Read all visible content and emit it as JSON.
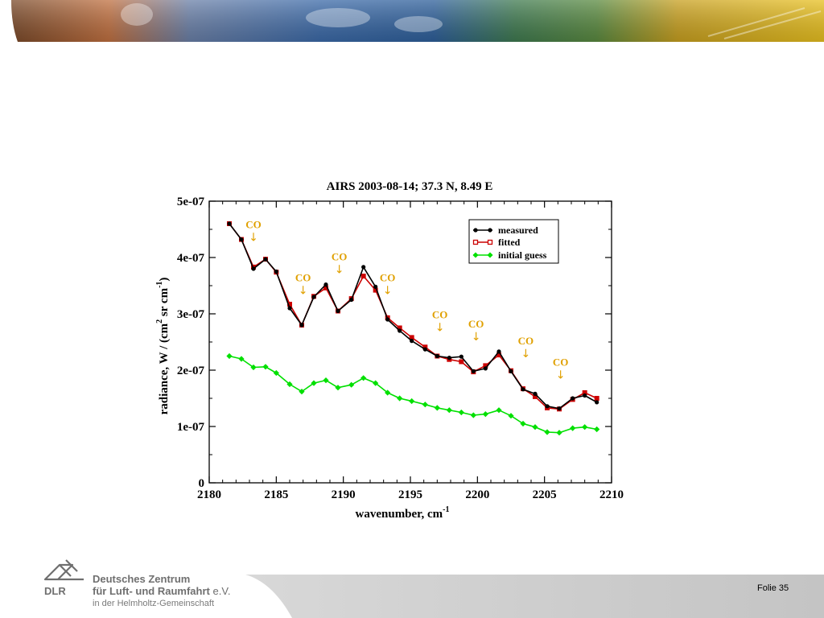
{
  "footer": {
    "org_line1": "Deutsches Zentrum",
    "org_line2": "für Luft- und Raumfahrt",
    "org_suffix": "e.V.",
    "org_line3": "in der Helmholtz-Gemeinschaft",
    "logo_text": "DLR",
    "slide_label": "Folie 35"
  },
  "colors": {
    "measured": "#000000",
    "fitted": "#cc0000",
    "initial_guess": "#00e000",
    "co_annotation": "#e0a000"
  },
  "chart_data": {
    "type": "line",
    "title": "AIRS 2003-08-14; 37.3 N, 8.49 E",
    "xlabel": "wavenumber, cm",
    "xlabel_sup": "-1",
    "ylabel": "radiance, W / (cm",
    "ylabel_sup1": "2",
    "ylabel_mid": " sr cm",
    "ylabel_sup2": "-1",
    "ylabel_end": ")",
    "xlim": [
      2180,
      2210
    ],
    "ylim": [
      0,
      5e-07
    ],
    "xticks": [
      2180,
      2185,
      2190,
      2195,
      2200,
      2205,
      2210
    ],
    "xtick_labels": [
      "2180",
      "2185",
      "2190",
      "2195",
      "2200",
      "2205",
      "2210"
    ],
    "yticks": [
      0,
      1e-07,
      2e-07,
      3e-07,
      4e-07,
      5e-07
    ],
    "ytick_labels": [
      "0",
      "1e-07",
      "2e-07",
      "3e-07",
      "4e-07",
      "5e-07"
    ],
    "legend_position": "top-right",
    "grid": false,
    "x": [
      2181.5,
      2182.4,
      2183.3,
      2184.2,
      2185.0,
      2186.0,
      2186.9,
      2187.8,
      2188.7,
      2189.6,
      2190.6,
      2191.5,
      2192.4,
      2193.3,
      2194.2,
      2195.1,
      2196.1,
      2197.0,
      2197.9,
      2198.8,
      2199.7,
      2200.6,
      2201.6,
      2202.5,
      2203.4,
      2204.3,
      2205.2,
      2206.1,
      2207.1,
      2208.0,
      2208.9
    ],
    "series": [
      {
        "name": "measured",
        "marker": "circle",
        "values": [
          4.6e-07,
          4.32e-07,
          3.8e-07,
          3.97e-07,
          3.75e-07,
          3.1e-07,
          2.8e-07,
          3.3e-07,
          3.52e-07,
          3.05e-07,
          3.25e-07,
          3.83e-07,
          3.48e-07,
          2.9e-07,
          2.7e-07,
          2.52e-07,
          2.37e-07,
          2.25e-07,
          2.22e-07,
          2.24e-07,
          1.98e-07,
          2.03e-07,
          2.33e-07,
          1.98e-07,
          1.66e-07,
          1.58e-07,
          1.36e-07,
          1.32e-07,
          1.5e-07,
          1.55e-07,
          1.43e-07
        ]
      },
      {
        "name": "fitted",
        "marker": "square",
        "values": [
          4.6e-07,
          4.32e-07,
          3.83e-07,
          3.97e-07,
          3.74e-07,
          3.17e-07,
          2.8e-07,
          3.31e-07,
          3.46e-07,
          3.05e-07,
          3.27e-07,
          3.67e-07,
          3.42e-07,
          2.93e-07,
          2.75e-07,
          2.58e-07,
          2.41e-07,
          2.25e-07,
          2.19e-07,
          2.15e-07,
          1.97e-07,
          2.08e-07,
          2.27e-07,
          1.99e-07,
          1.67e-07,
          1.53e-07,
          1.33e-07,
          1.31e-07,
          1.48e-07,
          1.6e-07,
          1.5e-07
        ]
      },
      {
        "name": "initial guess",
        "marker": "diamond",
        "values": [
          2.25e-07,
          2.2e-07,
          2.05e-07,
          2.06e-07,
          1.95e-07,
          1.75e-07,
          1.62e-07,
          1.77e-07,
          1.82e-07,
          1.69e-07,
          1.74e-07,
          1.86e-07,
          1.77e-07,
          1.6e-07,
          1.5e-07,
          1.45e-07,
          1.39e-07,
          1.33e-07,
          1.29e-07,
          1.25e-07,
          1.2e-07,
          1.22e-07,
          1.29e-07,
          1.19e-07,
          1.05e-07,
          9.9e-08,
          9e-08,
          8.9e-08,
          9.7e-08,
          9.9e-08,
          9.5e-08
        ]
      }
    ],
    "annotations": [
      {
        "text": "CO",
        "arrow": "↓",
        "x": 2183.3,
        "y": 4.52e-07
      },
      {
        "text": "CO",
        "arrow": "↓",
        "x": 2187.0,
        "y": 3.58e-07
      },
      {
        "text": "CO",
        "arrow": "↓",
        "x": 2189.7,
        "y": 3.95e-07
      },
      {
        "text": "CO",
        "arrow": "↓",
        "x": 2193.3,
        "y": 3.58e-07
      },
      {
        "text": "CO",
        "arrow": "↓",
        "x": 2197.2,
        "y": 2.92e-07
      },
      {
        "text": "CO",
        "arrow": "↓",
        "x": 2199.9,
        "y": 2.76e-07
      },
      {
        "text": "CO",
        "arrow": "↓",
        "x": 2203.6,
        "y": 2.46e-07
      },
      {
        "text": "CO",
        "arrow": "↓",
        "x": 2206.2,
        "y": 2.08e-07
      }
    ]
  }
}
